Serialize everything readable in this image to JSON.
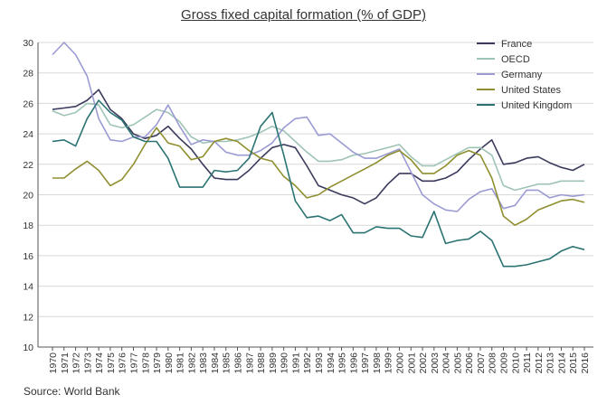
{
  "chart_data": {
    "type": "line",
    "title": "Gross fixed capital formation (% of GDP)",
    "source": "Source: World Bank",
    "xlabel": "",
    "ylabel": "",
    "ylim": [
      10,
      30
    ],
    "yticks": [
      10,
      12,
      14,
      16,
      18,
      20,
      22,
      24,
      26,
      28,
      30
    ],
    "x": [
      1970,
      1971,
      1972,
      1973,
      1974,
      1975,
      1976,
      1977,
      1978,
      1979,
      1980,
      1981,
      1982,
      1983,
      1984,
      1985,
      1986,
      1987,
      1988,
      1989,
      1990,
      1991,
      1992,
      1993,
      1994,
      1995,
      1996,
      1997,
      1998,
      1999,
      2000,
      2001,
      2002,
      2003,
      2004,
      2005,
      2006,
      2007,
      2008,
      2009,
      2010,
      2011,
      2012,
      2013,
      2014,
      2015,
      2016
    ],
    "legend_position": "top-right",
    "series": [
      {
        "name": "France",
        "color": "#3a3a5c",
        "values": [
          25.6,
          25.7,
          25.8,
          26.2,
          26.9,
          25.6,
          25.0,
          24.0,
          23.7,
          23.9,
          24.5,
          23.7,
          23.0,
          22.0,
          21.1,
          21.0,
          21.0,
          21.6,
          22.4,
          23.1,
          23.3,
          23.1,
          21.9,
          20.6,
          20.3,
          20.0,
          19.8,
          19.4,
          19.8,
          20.7,
          21.4,
          21.4,
          20.9,
          20.9,
          21.1,
          21.5,
          22.3,
          23.0,
          23.6,
          22.0,
          22.1,
          22.4,
          22.5,
          22.1,
          21.8,
          21.6,
          22.0
        ]
      },
      {
        "name": "OECD",
        "color": "#9fc4b5",
        "values": [
          25.5,
          25.2,
          25.4,
          26.0,
          25.9,
          24.6,
          24.4,
          24.6,
          25.1,
          25.6,
          25.4,
          24.8,
          23.8,
          23.4,
          23.5,
          23.5,
          23.6,
          23.8,
          24.1,
          24.5,
          24.2,
          23.5,
          22.8,
          22.2,
          22.2,
          22.3,
          22.6,
          22.7,
          22.9,
          23.1,
          23.3,
          22.5,
          21.9,
          21.9,
          22.3,
          22.7,
          23.1,
          23.1,
          22.6,
          20.6,
          20.3,
          20.5,
          20.7,
          20.7,
          20.9,
          20.9,
          20.9
        ]
      },
      {
        "name": "Germany",
        "color": "#9b9bd4",
        "values": [
          29.2,
          30.0,
          29.2,
          27.8,
          25.0,
          23.6,
          23.5,
          23.8,
          23.8,
          24.6,
          25.9,
          24.5,
          23.3,
          23.6,
          23.5,
          22.8,
          22.6,
          22.6,
          22.9,
          23.4,
          24.4,
          25.0,
          25.1,
          23.9,
          24.0,
          23.4,
          22.8,
          22.4,
          22.4,
          22.7,
          23.0,
          21.5,
          20.0,
          19.4,
          19.0,
          18.9,
          19.7,
          20.2,
          20.4,
          19.1,
          19.3,
          20.3,
          20.3,
          19.8,
          20.0,
          19.9,
          20.0
        ]
      },
      {
        "name": "United States",
        "color": "#8f8f2f",
        "values": [
          21.1,
          21.1,
          21.7,
          22.2,
          21.6,
          20.6,
          21.0,
          22.0,
          23.3,
          24.4,
          23.4,
          23.2,
          22.3,
          22.5,
          23.5,
          23.7,
          23.5,
          22.9,
          22.4,
          22.2,
          21.2,
          20.6,
          19.8,
          20.0,
          20.5,
          20.9,
          21.3,
          21.7,
          22.1,
          22.6,
          22.9,
          22.3,
          21.4,
          21.4,
          21.9,
          22.6,
          22.9,
          22.6,
          21.1,
          18.6,
          18.0,
          18.4,
          19.0,
          19.3,
          19.6,
          19.7,
          19.5
        ]
      },
      {
        "name": "United Kingdom",
        "color": "#2b7373",
        "values": [
          23.5,
          23.6,
          23.2,
          25.0,
          26.2,
          25.4,
          24.9,
          23.8,
          23.5,
          23.5,
          22.4,
          20.5,
          20.5,
          20.5,
          21.6,
          21.5,
          21.6,
          22.4,
          24.5,
          25.4,
          22.6,
          19.6,
          18.5,
          18.6,
          18.3,
          18.7,
          17.5,
          17.5,
          17.9,
          17.8,
          17.8,
          17.3,
          17.2,
          18.9,
          16.8,
          17.0,
          17.1,
          17.6,
          17.0,
          15.3,
          15.3,
          15.4,
          15.6,
          15.8,
          16.3,
          16.6,
          16.4
        ]
      }
    ]
  }
}
